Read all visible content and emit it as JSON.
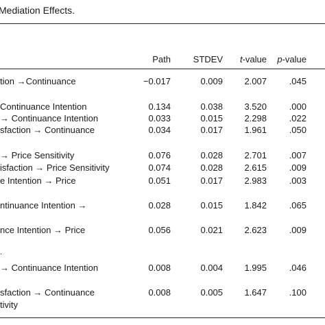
{
  "caption": "Mediation Effects.",
  "header": {
    "path": "Path",
    "stdev": "STDEV",
    "t_italic": "t",
    "t_rest": "-value",
    "p_italic": "p",
    "p_rest": "-value"
  },
  "rows": [
    {
      "label": "tion →Continuance",
      "path": "−0.017",
      "stdev": "0.009",
      "t": "2.007",
      "p": ".045"
    },
    {
      "label": "Continuance Intention",
      "path": "0.134",
      "stdev": "0.038",
      "t": "3.520",
      "p": ".000"
    },
    {
      "label": "→ Continuance Intention",
      "path": "0.033",
      "stdev": "0.015",
      "t": "2.298",
      "p": ".022"
    },
    {
      "label": "sfaction → Continuance",
      "path": "0.034",
      "stdev": "0.017",
      "t": "1.961",
      "p": ".050"
    },
    {
      "label": "→ Price Sensitivity",
      "path": "0.076",
      "stdev": "0.028",
      "t": "2.701",
      "p": ".007"
    },
    {
      "label": "isfaction → Price Sensitivity",
      "path": "0.074",
      "stdev": "0.028",
      "t": "2.615",
      "p": ".009"
    },
    {
      "label": "e Intention → Price",
      "path": "0.051",
      "stdev": "0.017",
      "t": "2.983",
      "p": ".003"
    },
    {
      "label": "ntinuance Intention →",
      "path": "0.028",
      "stdev": "0.015",
      "t": "1.842",
      "p": ".065"
    },
    {
      "label": "nce Intention → Price",
      "path": "0.056",
      "stdev": "0.021",
      "t": "2.623",
      "p": ".009"
    },
    {
      "label": "→ Continuance Intention",
      "path": "0.008",
      "stdev": "0.004",
      "t": "1.995",
      "p": ".046"
    },
    {
      "label": "sfaction → Continuance",
      "path": "0.008",
      "stdev": "0.005",
      "t": "1.647",
      "p": ".100"
    }
  ],
  "fragments": {
    "dot": ".",
    "tivity": "tivity"
  }
}
